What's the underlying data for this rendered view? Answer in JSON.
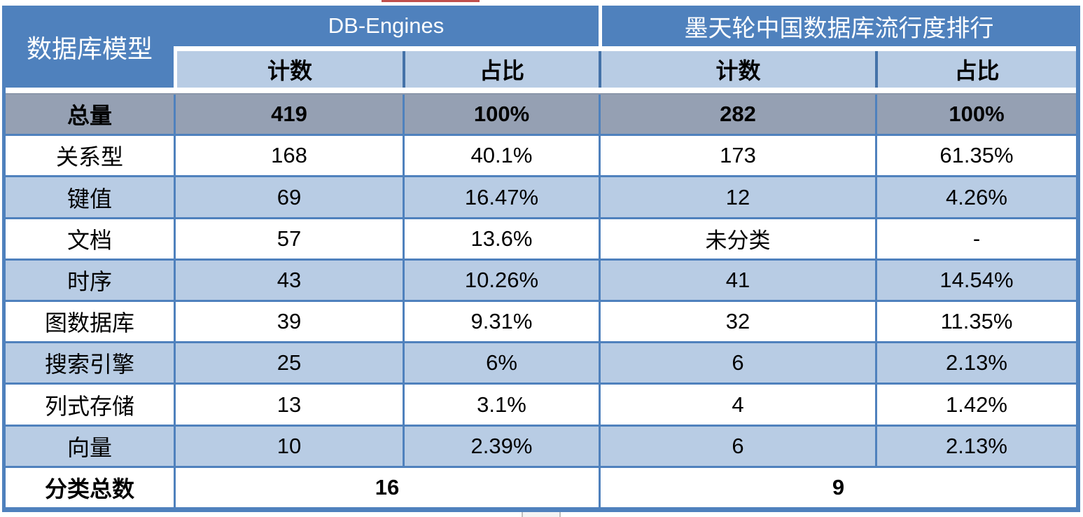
{
  "colors": {
    "header_blue": "#4f81bd",
    "subheader_light_blue": "#b8cce4",
    "row_band_blue": "#b8cce4",
    "total_row_gray": "#95a0b3",
    "border_blue": "#4f81bd",
    "header_text": "#ffffff",
    "body_text": "#000000",
    "artifact_red": "#c0504d"
  },
  "chart_data": {
    "type": "table",
    "corner_header": "数据库模型",
    "column_groups": [
      {
        "label": "DB-Engines",
        "span": 2
      },
      {
        "label": "墨天轮中国数据库流行度排行",
        "span": 2
      }
    ],
    "sub_headers": [
      "计数",
      "占比",
      "计数",
      "占比"
    ],
    "rows": [
      {
        "label": "总量",
        "cells": [
          "419",
          "100%",
          "282",
          "100%"
        ],
        "emphasis": true
      },
      {
        "label": "关系型",
        "cells": [
          "168",
          "40.1%",
          "173",
          "61.35%"
        ]
      },
      {
        "label": "键值",
        "cells": [
          "69",
          "16.47%",
          "12",
          "4.26%"
        ]
      },
      {
        "label": "文档",
        "cells": [
          "57",
          "13.6%",
          "未分类",
          "-"
        ]
      },
      {
        "label": "时序",
        "cells": [
          "43",
          "10.26%",
          "41",
          "14.54%"
        ]
      },
      {
        "label": "图数据库",
        "cells": [
          "39",
          "9.31%",
          "32",
          "11.35%"
        ]
      },
      {
        "label": "搜索引擎",
        "cells": [
          "25",
          "6%",
          "6",
          "2.13%"
        ]
      },
      {
        "label": "列式存储",
        "cells": [
          "13",
          "3.1%",
          "4",
          "1.42%"
        ]
      },
      {
        "label": "向量",
        "cells": [
          "10",
          "2.39%",
          "6",
          "2.13%"
        ]
      }
    ],
    "footer": {
      "label": "分类总数",
      "left_total": "16",
      "right_total": "9"
    }
  }
}
